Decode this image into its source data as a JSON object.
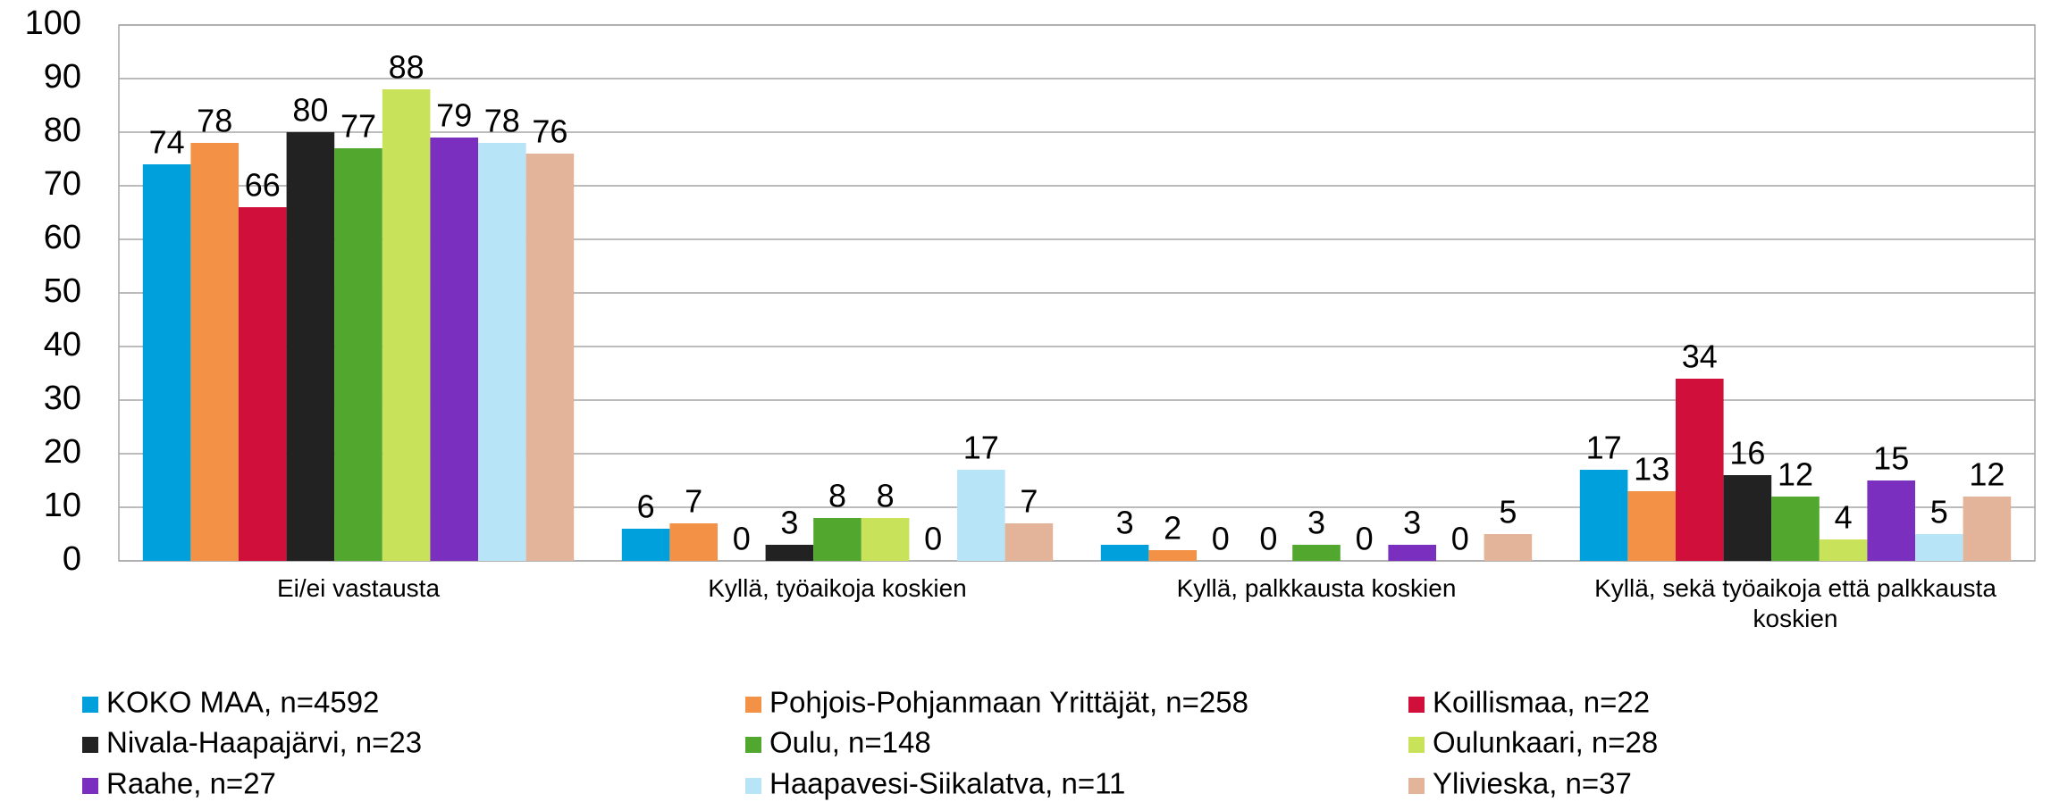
{
  "chart_data": {
    "type": "bar",
    "categories": [
      "Ei/ei vastausta",
      "Kyllä, työaikoja koskien",
      "Kyllä, palkkausta koskien",
      "Kyllä, sekä työaikoja että palkkausta koskien"
    ],
    "series": [
      {
        "name": "KOKO MAA, n=4592",
        "color": "#00a0dc",
        "values": [
          74,
          6,
          3,
          17
        ]
      },
      {
        "name": "Pohjois-Pohjanmaan Yrittäjät, n=258",
        "color": "#f39147",
        "values": [
          78,
          7,
          2,
          13
        ]
      },
      {
        "name": "Koillismaa, n=22",
        "color": "#d0103a",
        "values": [
          66,
          0,
          0,
          34
        ]
      },
      {
        "name": "Nivala-Haapajärvi, n=23",
        "color": "#222222",
        "values": [
          80,
          3,
          0,
          16
        ]
      },
      {
        "name": "Oulu, n=148",
        "color": "#52a82e",
        "values": [
          77,
          8,
          3,
          12
        ]
      },
      {
        "name": "Oulunkaari, n=28",
        "color": "#c8e35a",
        "values": [
          88,
          8,
          0,
          4
        ]
      },
      {
        "name": "Raahe, n=27",
        "color": "#7b2fbe",
        "values": [
          79,
          0,
          3,
          15
        ]
      },
      {
        "name": "Haapavesi-Siikalatva, n=11",
        "color": "#b7e4f6",
        "values": [
          78,
          17,
          0,
          5
        ]
      },
      {
        "name": "Ylivieska, n=37",
        "color": "#e4b49a",
        "values": [
          76,
          7,
          5,
          12
        ]
      }
    ],
    "ylim": [
      0,
      100
    ],
    "yticks": [
      0,
      10,
      20,
      30,
      40,
      50,
      60,
      70,
      80,
      90,
      100
    ],
    "grid": true,
    "legend": "bottom"
  }
}
